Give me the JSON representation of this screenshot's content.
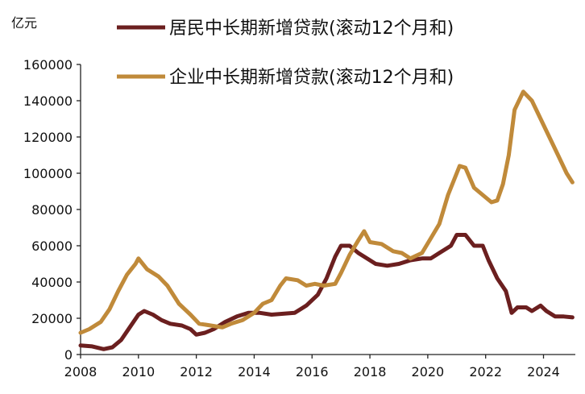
{
  "chart_data": {
    "type": "line",
    "title": "",
    "unit_label": "亿元",
    "xlabel": "",
    "ylabel": "",
    "xlim": [
      2008,
      2025.1
    ],
    "ylim": [
      0,
      160000
    ],
    "x_ticks": [
      2008,
      2010,
      2012,
      2014,
      2016,
      2018,
      2020,
      2022,
      2024
    ],
    "y_ticks": [
      0,
      20000,
      40000,
      60000,
      80000,
      100000,
      120000,
      140000,
      160000
    ],
    "grid": false,
    "legend_position": "top",
    "series": [
      {
        "name": "居民中长期新增贷款(滚动12个月和)",
        "color": "#6B1F1F",
        "points": [
          [
            2008.0,
            5000
          ],
          [
            2008.4,
            4500
          ],
          [
            2008.8,
            3000
          ],
          [
            2009.1,
            4000
          ],
          [
            2009.4,
            8000
          ],
          [
            2009.7,
            15000
          ],
          [
            2010.0,
            22000
          ],
          [
            2010.2,
            24000
          ],
          [
            2010.5,
            22000
          ],
          [
            2010.8,
            19000
          ],
          [
            2011.1,
            17000
          ],
          [
            2011.5,
            16000
          ],
          [
            2011.8,
            14000
          ],
          [
            2012.0,
            11000
          ],
          [
            2012.3,
            12000
          ],
          [
            2012.6,
            14000
          ],
          [
            2013.0,
            18000
          ],
          [
            2013.4,
            21000
          ],
          [
            2013.8,
            23000
          ],
          [
            2014.2,
            23000
          ],
          [
            2014.6,
            22000
          ],
          [
            2015.0,
            22500
          ],
          [
            2015.4,
            23000
          ],
          [
            2015.8,
            27000
          ],
          [
            2016.2,
            33000
          ],
          [
            2016.5,
            42000
          ],
          [
            2016.8,
            54000
          ],
          [
            2017.0,
            60000
          ],
          [
            2017.3,
            60000
          ],
          [
            2017.6,
            56000
          ],
          [
            2017.9,
            53000
          ],
          [
            2018.2,
            50000
          ],
          [
            2018.6,
            49000
          ],
          [
            2019.0,
            50000
          ],
          [
            2019.4,
            52000
          ],
          [
            2019.8,
            53000
          ],
          [
            2020.1,
            53000
          ],
          [
            2020.4,
            56000
          ],
          [
            2020.8,
            60000
          ],
          [
            2021.0,
            66000
          ],
          [
            2021.3,
            66000
          ],
          [
            2021.6,
            60000
          ],
          [
            2021.9,
            60000
          ],
          [
            2022.1,
            52000
          ],
          [
            2022.4,
            42000
          ],
          [
            2022.7,
            35000
          ],
          [
            2022.9,
            23000
          ],
          [
            2023.1,
            26000
          ],
          [
            2023.4,
            26000
          ],
          [
            2023.6,
            24000
          ],
          [
            2023.9,
            27000
          ],
          [
            2024.1,
            24000
          ],
          [
            2024.4,
            21000
          ],
          [
            2024.7,
            21000
          ],
          [
            2025.0,
            20500
          ]
        ]
      },
      {
        "name": "企业中长期新增贷款(滚动12个月和)",
        "color": "#C08A3A",
        "points": [
          [
            2008.0,
            12000
          ],
          [
            2008.3,
            14000
          ],
          [
            2008.7,
            18000
          ],
          [
            2009.0,
            25000
          ],
          [
            2009.3,
            35000
          ],
          [
            2009.6,
            44000
          ],
          [
            2009.9,
            50000
          ],
          [
            2010.0,
            53000
          ],
          [
            2010.3,
            47000
          ],
          [
            2010.7,
            43000
          ],
          [
            2011.0,
            38000
          ],
          [
            2011.4,
            28000
          ],
          [
            2011.8,
            22000
          ],
          [
            2012.1,
            17000
          ],
          [
            2012.5,
            16000
          ],
          [
            2012.9,
            15000
          ],
          [
            2013.2,
            17000
          ],
          [
            2013.6,
            19000
          ],
          [
            2014.0,
            23000
          ],
          [
            2014.3,
            28000
          ],
          [
            2014.6,
            30000
          ],
          [
            2014.9,
            38000
          ],
          [
            2015.1,
            42000
          ],
          [
            2015.5,
            41000
          ],
          [
            2015.8,
            38000
          ],
          [
            2016.1,
            39000
          ],
          [
            2016.4,
            38000
          ],
          [
            2016.8,
            39000
          ],
          [
            2017.0,
            45000
          ],
          [
            2017.3,
            55000
          ],
          [
            2017.6,
            63000
          ],
          [
            2017.8,
            68000
          ],
          [
            2018.0,
            62000
          ],
          [
            2018.4,
            61000
          ],
          [
            2018.8,
            57000
          ],
          [
            2019.1,
            56000
          ],
          [
            2019.4,
            53000
          ],
          [
            2019.8,
            56000
          ],
          [
            2020.1,
            64000
          ],
          [
            2020.4,
            72000
          ],
          [
            2020.7,
            88000
          ],
          [
            2020.9,
            96000
          ],
          [
            2021.1,
            104000
          ],
          [
            2021.3,
            103000
          ],
          [
            2021.6,
            92000
          ],
          [
            2021.9,
            88000
          ],
          [
            2022.2,
            84000
          ],
          [
            2022.4,
            85000
          ],
          [
            2022.6,
            94000
          ],
          [
            2022.8,
            110000
          ],
          [
            2023.0,
            135000
          ],
          [
            2023.3,
            145000
          ],
          [
            2023.6,
            140000
          ],
          [
            2023.9,
            130000
          ],
          [
            2024.2,
            120000
          ],
          [
            2024.5,
            110000
          ],
          [
            2024.8,
            100000
          ],
          [
            2025.0,
            95000
          ]
        ]
      }
    ]
  }
}
